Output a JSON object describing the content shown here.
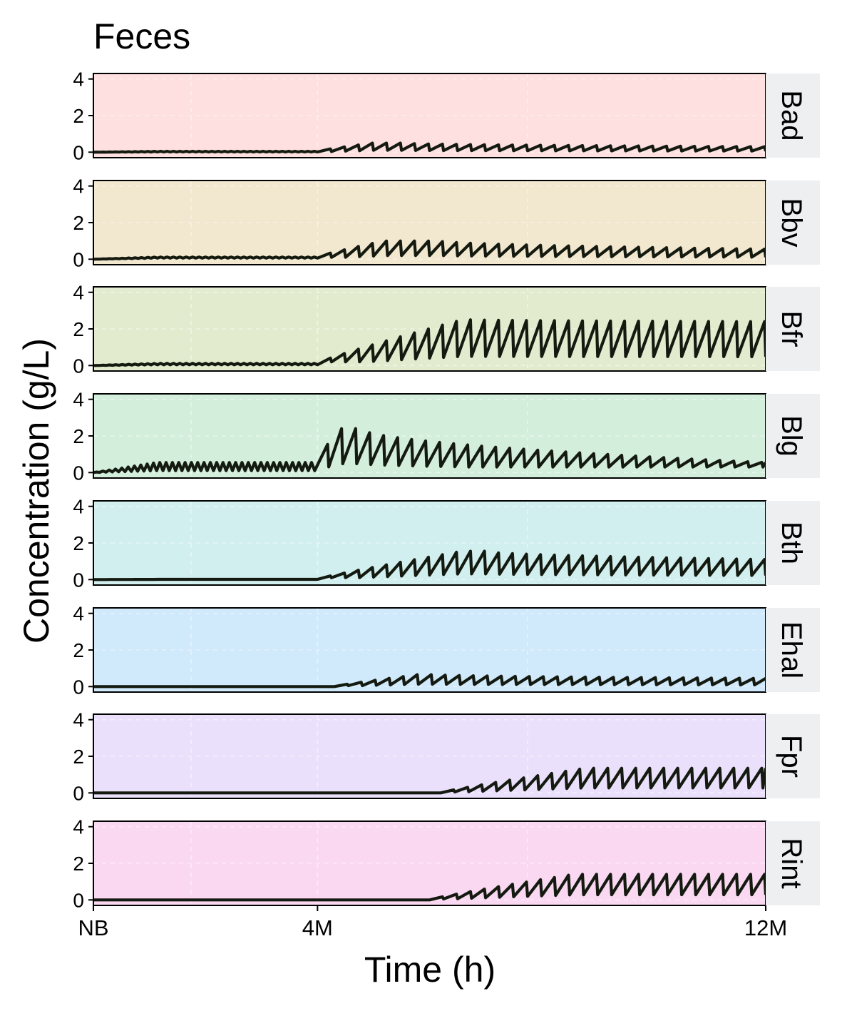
{
  "chart_data": {
    "type": "line",
    "title": "Feces",
    "xlabel": "Time (h)",
    "ylabel": "Concentration (g/L)",
    "x_ticks": [
      {
        "label": "NB",
        "value": 0
      },
      {
        "label": "4M",
        "value": 4
      },
      {
        "label": "12M",
        "value": 12
      }
    ],
    "xlim": [
      0,
      12
    ],
    "ylim": [
      -0.3,
      4.3
    ],
    "y_ticks": [
      0,
      2,
      4
    ],
    "grid": true,
    "facets": [
      {
        "label": "Bad",
        "fill": "#fde0df",
        "profile": {
          "early": 0.05,
          "early_amp": 0.04,
          "start": 4.0,
          "ramp": 1.0,
          "peak": 0.5,
          "peak_at": 5.5,
          "end": 0.3,
          "trough": 0.02
        }
      },
      {
        "label": "Bbv",
        "fill": "#f2e7cf",
        "profile": {
          "early": 0.12,
          "early_amp": 0.06,
          "start": 4.0,
          "ramp": 1.2,
          "peak": 1.0,
          "peak_at": 6.2,
          "end": 0.55,
          "trough": 0.1
        }
      },
      {
        "label": "Bfr",
        "fill": "#e3ebce",
        "profile": {
          "early": 0.12,
          "early_amp": 0.08,
          "start": 4.0,
          "ramp": 2.6,
          "peak": 2.5,
          "peak_at": 6.8,
          "end": 2.4,
          "trough": 0.2
        }
      },
      {
        "label": "Blg",
        "fill": "#d4eedc",
        "profile": {
          "early": 0.55,
          "early_amp": 0.45,
          "start": 3.95,
          "ramp": 0.5,
          "peak": 2.4,
          "peak_at": 4.8,
          "end": 0.55,
          "trough": 0.3
        }
      },
      {
        "label": "Bth",
        "fill": "#d2efef",
        "profile": {
          "early": 0.01,
          "early_amp": 0.0,
          "start": 4.0,
          "ramp": 2.6,
          "peak": 1.55,
          "peak_at": 7.0,
          "end": 1.1,
          "trough": 0.1
        }
      },
      {
        "label": "Ehal",
        "fill": "#d0e9fb",
        "profile": {
          "early": 0.0,
          "early_amp": 0.0,
          "start": 4.3,
          "ramp": 1.5,
          "peak": 0.65,
          "peak_at": 6.2,
          "end": 0.45,
          "trough": 0.05
        }
      },
      {
        "label": "Fpr",
        "fill": "#ebe0fb",
        "profile": {
          "early": 0.0,
          "early_amp": 0.0,
          "start": 6.2,
          "ramp": 2.6,
          "peak": 1.35,
          "peak_at": 11.5,
          "end": 1.35,
          "trough": 0.05
        }
      },
      {
        "label": "Rint",
        "fill": "#fad8f2",
        "profile": {
          "early": 0.0,
          "early_amp": 0.0,
          "start": 6.0,
          "ramp": 2.6,
          "peak": 1.4,
          "peak_at": 11.5,
          "end": 1.4,
          "trough": 0.05
        }
      }
    ]
  }
}
